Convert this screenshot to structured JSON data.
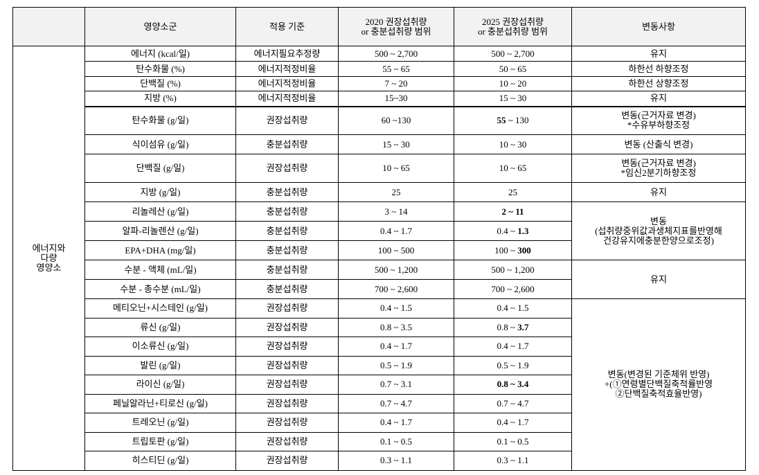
{
  "header": {
    "cells": [
      [
        "영양소군"
      ],
      [
        "적용 기준"
      ],
      [
        "2020 권장섭취량",
        "or 충분섭취량 범위"
      ],
      [
        "2025 권장섭취량",
        "or 충분섭취량 범위"
      ],
      [
        "변동사항"
      ]
    ]
  },
  "section": {
    "label": [
      "에너지와",
      "다량",
      "영양소"
    ],
    "groups": [
      {
        "change": [
          "유지"
        ],
        "rows": [
          {
            "name": "에너지 (kcal/일)",
            "standard": "에너지필요추정량",
            "v2020": "500 ~ 2,700",
            "v2025": [
              "500 ~ 2,700"
            ]
          }
        ]
      },
      {
        "change": [
          "하한선 하향조정"
        ],
        "rows": [
          {
            "name": "탄수화물 (%)",
            "standard": "에너지적정비율",
            "v2020": "55 ~ 65",
            "v2025": [
              "50 ~ 65"
            ]
          }
        ]
      },
      {
        "change": [
          "하한선 상향조정"
        ],
        "rows": [
          {
            "name": "단백질 (%)",
            "standard": "에너지적정비율",
            "v2020": "7 ~ 20",
            "v2025": [
              "10 ~ 20"
            ]
          }
        ]
      },
      {
        "change": [
          "유지"
        ],
        "rows": [
          {
            "name": "지방 (%)",
            "standard": "에너지적정비율",
            "v2020": "15~30",
            "v2025": [
              "15 ~ 30"
            ]
          }
        ]
      },
      {
        "change": [
          "변동(근거자료 변경)",
          "*수유부하향조정"
        ],
        "rows": [
          {
            "name": "탄수화물 (g/일)",
            "standard": "권장섭취량",
            "v2020": "60 ~130",
            "v2025": [
              {
                "text": "55",
                "bold": true
              },
              " ~ 130"
            ]
          }
        ]
      },
      {
        "change": [
          "변동 (산출식 변경)"
        ],
        "rows": [
          {
            "name": "식이섬유 (g/일)",
            "standard": "충분섭취량",
            "v2020": "15 ~ 30",
            "v2025": [
              "10 ~ 30"
            ]
          }
        ]
      },
      {
        "change": [
          "변동(근거자료 변경)",
          "*임신2분기하향조정"
        ],
        "rows": [
          {
            "name": "단백질 (g/일)",
            "standard": "권장섭취량",
            "v2020": "10 ~ 65",
            "v2025": [
              "10 ~ 65"
            ]
          }
        ]
      },
      {
        "change": [
          "유지"
        ],
        "rows": [
          {
            "name": "지방 (g/일)",
            "standard": "충분섭취량",
            "v2020": "25",
            "v2025": [
              "25"
            ]
          }
        ]
      },
      {
        "change": [
          "변동",
          "(섭취량중위값과생체지표를반영해",
          "건강유지에충분한양으로조정)"
        ],
        "rows": [
          {
            "name": "리놀레산 (g/일)",
            "standard": "충분섭취량",
            "v2020": "3 ~ 14",
            "v2025": [
              {
                "text": "2 ~ 11",
                "bold": true
              }
            ]
          },
          {
            "name": "알파-리놀렌산 (g/일)",
            "standard": "충분섭취량",
            "v2020": "0.4 ~ 1.7",
            "v2025": [
              "0.4 ~ ",
              {
                "text": "1.3",
                "bold": true
              }
            ]
          },
          {
            "name": "EPA+DHA (mg/일)",
            "standard": "충분섭취량",
            "v2020": "100 ~ 500",
            "v2025": [
              "100 ~ ",
              {
                "text": "300",
                "bold": true
              }
            ]
          }
        ]
      },
      {
        "change": [
          "유지"
        ],
        "rows": [
          {
            "name": "수분 - 액체 (mL/일)",
            "standard": "충분섭취량",
            "v2020": "500 ~ 1,200",
            "v2025": [
              "500 ~ 1,200"
            ]
          },
          {
            "name": "수분 - 총수분 (mL/일)",
            "standard": "충분섭취량",
            "v2020": "700 ~ 2,600",
            "v2025": [
              "700 ~ 2,600"
            ]
          }
        ]
      },
      {
        "change": [
          "변동(변경된 기준체위 반영)",
          "+(①연령별단백질축적률반영",
          "②단백질축적효율반영)"
        ],
        "rows": [
          {
            "name": "메티오닌+시스테인 (g/일)",
            "standard": "권장섭취량",
            "v2020": "0.4 ~ 1.5",
            "v2025": [
              "0.4 ~ 1.5"
            ]
          },
          {
            "name": "류신 (g/일)",
            "standard": "권장섭취량",
            "v2020": "0.8 ~ 3.5",
            "v2025": [
              "0.8 ~ ",
              {
                "text": "3.7",
                "bold": true
              }
            ]
          },
          {
            "name": "이소류신 (g/일)",
            "standard": "권장섭취량",
            "v2020": "0.4 ~ 1.7",
            "v2025": [
              "0.4 ~ 1.7"
            ]
          },
          {
            "name": "발린 (g/일)",
            "standard": "권장섭취량",
            "v2020": "0.5 ~ 1.9",
            "v2025": [
              "0.5 ~ 1.9"
            ]
          },
          {
            "name": "라이신 (g/일)",
            "standard": "권장섭취량",
            "v2020": "0.7 ~ 3.1",
            "v2025": [
              {
                "text": "0.8 ~ 3.4",
                "bold": true
              }
            ]
          },
          {
            "name": "페닐알라닌+티로신 (g/일)",
            "standard": "권장섭취량",
            "v2020": "0.7 ~ 4.7",
            "v2025": [
              "0.7 ~ 4.7"
            ]
          },
          {
            "name": "트레오닌 (g/일)",
            "standard": "권장섭취량",
            "v2020": "0.4 ~ 1.7",
            "v2025": [
              "0.4 ~ 1.7"
            ]
          },
          {
            "name": "트립토판 (g/일)",
            "standard": "권장섭취량",
            "v2020": "0.1 ~ 0.5",
            "v2025": [
              "0.1 ~ 0.5"
            ]
          },
          {
            "name": "히스티딘 (g/일)",
            "standard": "권장섭취량",
            "v2020": "0.3 ~ 1.1",
            "v2025": [
              "0.3 ~ 1.1"
            ]
          }
        ]
      }
    ]
  }
}
